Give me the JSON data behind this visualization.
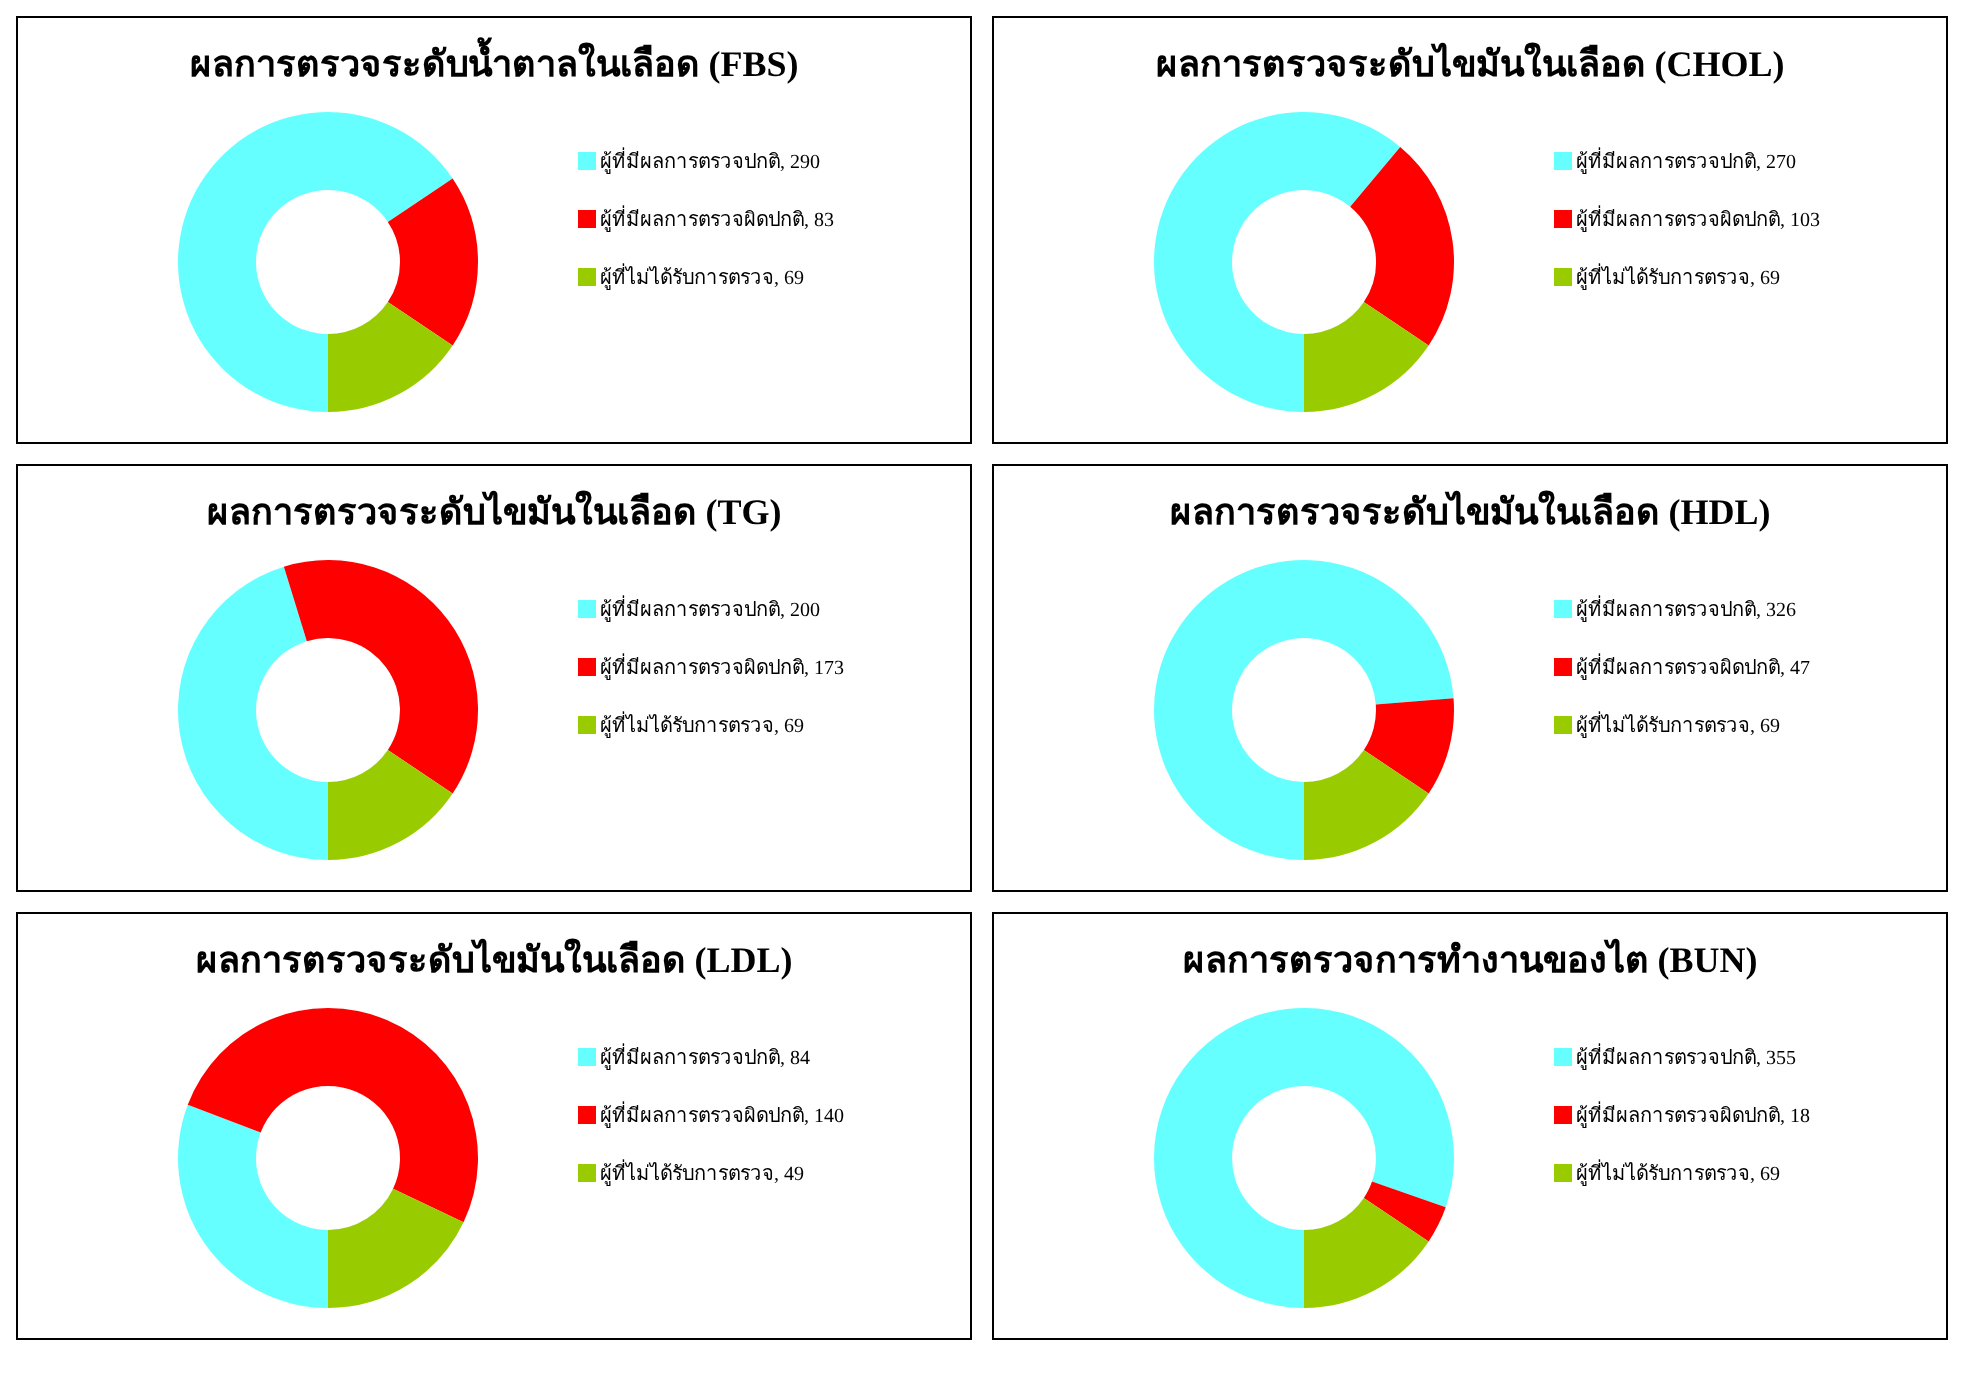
{
  "chart_data": [
    {
      "type": "donut",
      "title": "ผลการตรวจระดับน้ำตาลในเลือด (FBS)",
      "categories": [
        "ผู้ที่มีผลการตรวจปกติ, 290",
        "ผู้ที่มีผลการตรวจผิดปกติ, 83",
        "ผู้ที่ไม่ได้รับการตรวจ, 69"
      ],
      "values": [
        290,
        83,
        69
      ],
      "colors": [
        "#66ffff",
        "#ff0000",
        "#99cc00"
      ],
      "legend": "right"
    },
    {
      "type": "donut",
      "title": "ผลการตรวจระดับไขมันในเลือด (CHOL)",
      "categories": [
        "ผู้ที่มีผลการตรวจปกติ, 270",
        "ผู้ที่มีผลการตรวจผิดปกติ, 103",
        "ผู้ที่ไม่ได้รับการตรวจ, 69"
      ],
      "values": [
        270,
        103,
        69
      ],
      "colors": [
        "#66ffff",
        "#ff0000",
        "#99cc00"
      ],
      "legend": "right"
    },
    {
      "type": "donut",
      "title": "ผลการตรวจระดับไขมันในเลือด (TG)",
      "categories": [
        "ผู้ที่มีผลการตรวจปกติ, 200",
        "ผู้ที่มีผลการตรวจผิดปกติ, 173",
        "ผู้ที่ไม่ได้รับการตรวจ, 69"
      ],
      "values": [
        200,
        173,
        69
      ],
      "colors": [
        "#66ffff",
        "#ff0000",
        "#99cc00"
      ],
      "legend": "right"
    },
    {
      "type": "donut",
      "title": "ผลการตรวจระดับไขมันในเลือด (HDL)",
      "categories": [
        "ผู้ที่มีผลการตรวจปกติ, 326",
        "ผู้ที่มีผลการตรวจผิดปกติ, 47",
        "ผู้ที่ไม่ได้รับการตรวจ, 69"
      ],
      "values": [
        326,
        47,
        69
      ],
      "colors": [
        "#66ffff",
        "#ff0000",
        "#99cc00"
      ],
      "legend": "right"
    },
    {
      "type": "donut",
      "title": "ผลการตรวจระดับไขมันในเลือด (LDL)",
      "categories": [
        "ผู้ที่มีผลการตรวจปกติ, 84",
        "ผู้ที่มีผลการตรวจผิดปกติ, 140",
        "ผู้ที่ไม่ได้รับการตรวจ, 49"
      ],
      "values": [
        84,
        140,
        49
      ],
      "colors": [
        "#66ffff",
        "#ff0000",
        "#99cc00"
      ],
      "legend": "right"
    },
    {
      "type": "donut",
      "title": "ผลการตรวจการทำงานของไต (BUN)",
      "categories": [
        "ผู้ที่มีผลการตรวจปกติ, 355",
        "ผู้ที่มีผลการตรวจผิดปกติ, 18",
        "ผู้ที่ไม่ได้รับการตรวจ, 69"
      ],
      "values": [
        355,
        18,
        69
      ],
      "colors": [
        "#66ffff",
        "#ff0000",
        "#99cc00"
      ],
      "legend": "right"
    }
  ]
}
